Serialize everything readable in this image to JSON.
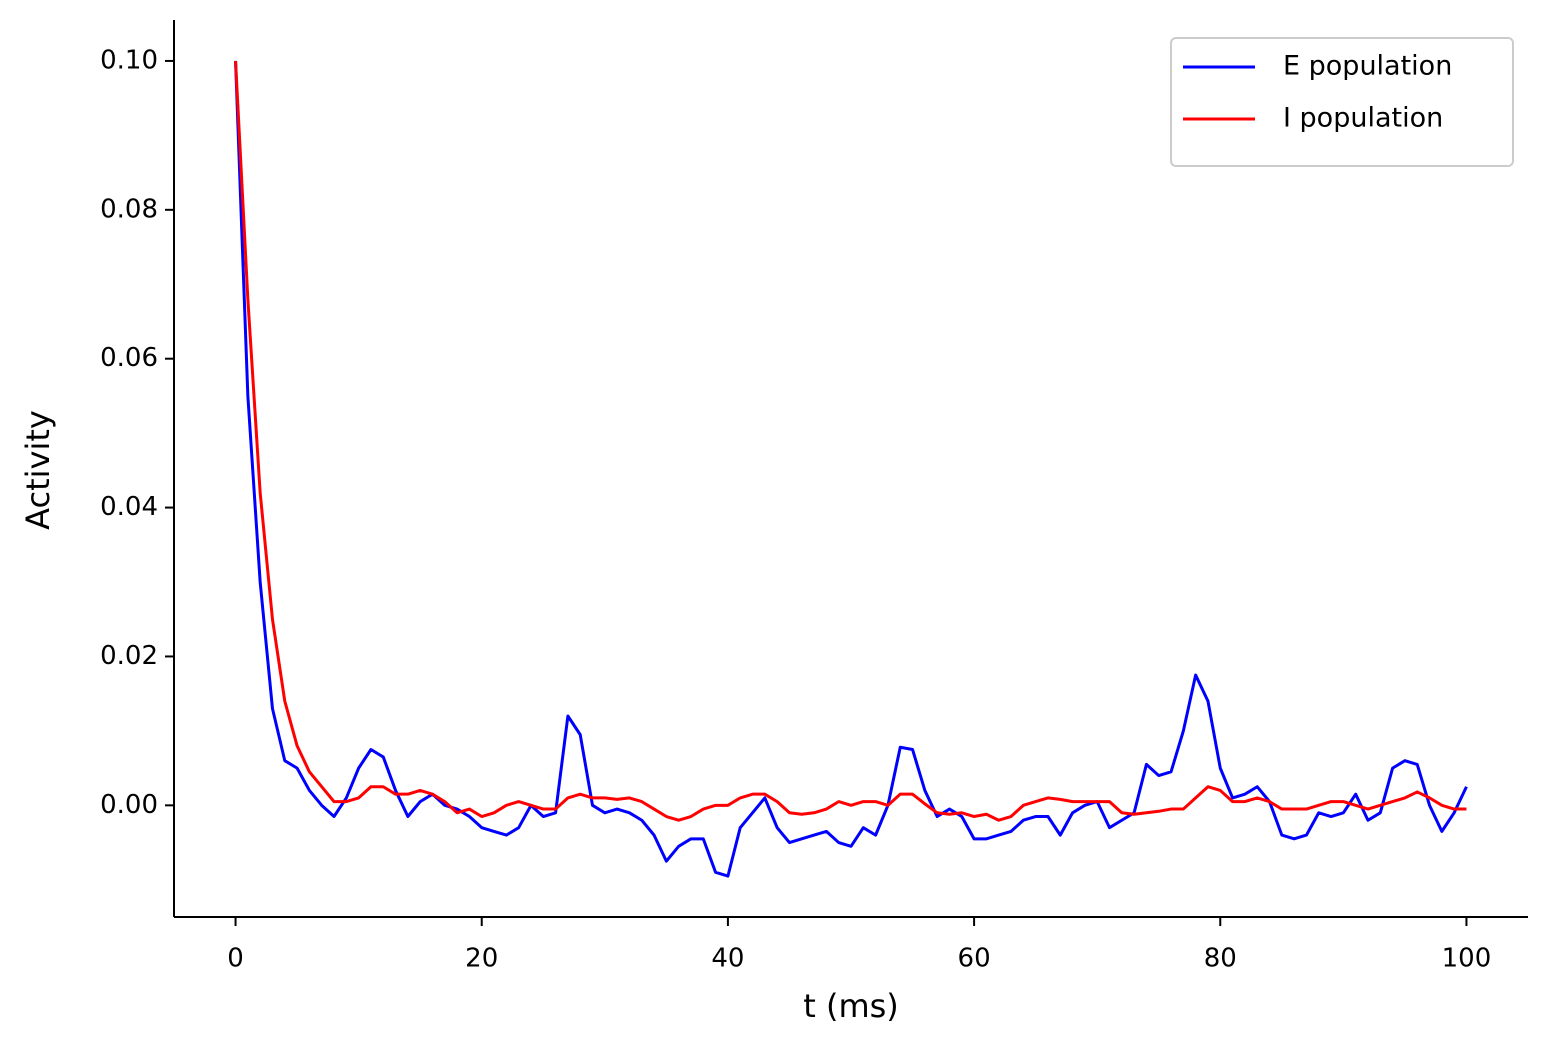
{
  "chart_data": {
    "type": "line",
    "xlabel": "t (ms)",
    "ylabel": "Activity",
    "xlim": [
      -5,
      105
    ],
    "ylim": [
      -0.015,
      0.1055
    ],
    "xticks": [
      0,
      20,
      40,
      60,
      80,
      100
    ],
    "yticks": [
      {
        "value": 0,
        "label": "0.00"
      },
      {
        "value": 0.02,
        "label": "0.02"
      },
      {
        "value": 0.04,
        "label": "0.04"
      },
      {
        "value": 0.06,
        "label": "0.06"
      },
      {
        "value": 0.08,
        "label": "0.08"
      },
      {
        "value": 0.1,
        "label": "0.10"
      }
    ],
    "legend": "upper right",
    "x": [
      0,
      1,
      2,
      3,
      4,
      5,
      6,
      7,
      8,
      9,
      10,
      11,
      12,
      13,
      14,
      15,
      16,
      17,
      18,
      19,
      20,
      21,
      22,
      23,
      24,
      25,
      26,
      27,
      28,
      29,
      30,
      31,
      32,
      33,
      34,
      35,
      36,
      37,
      38,
      39,
      40,
      41,
      42,
      43,
      44,
      45,
      46,
      47,
      48,
      49,
      50,
      51,
      52,
      53,
      54,
      55,
      56,
      57,
      58,
      59,
      60,
      61,
      62,
      63,
      64,
      65,
      66,
      67,
      68,
      69,
      70,
      71,
      72,
      73,
      74,
      75,
      76,
      77,
      78,
      79,
      80,
      81,
      82,
      83,
      84,
      85,
      86,
      87,
      88,
      89,
      90,
      91,
      92,
      93,
      94,
      95,
      96,
      97,
      98,
      99,
      100
    ],
    "series": [
      {
        "name": "E population",
        "color": "#0000ff",
        "values": [
          0.1,
          0.055,
          0.03,
          0.013,
          0.006,
          0.005,
          0.002,
          0.0,
          -0.0015,
          0.001,
          0.005,
          0.0075,
          0.0065,
          0.002,
          -0.0015,
          0.0005,
          0.0015,
          0.0,
          -0.0005,
          -0.0015,
          -0.003,
          -0.0035,
          -0.004,
          -0.003,
          0.0,
          -0.0015,
          -0.001,
          0.012,
          0.0095,
          0.0,
          -0.001,
          -0.0005,
          -0.001,
          -0.002,
          -0.004,
          -0.0075,
          -0.0055,
          -0.0045,
          -0.0045,
          -0.009,
          -0.0095,
          -0.003,
          -0.001,
          0.001,
          -0.003,
          -0.005,
          -0.0045,
          -0.004,
          -0.0035,
          -0.005,
          -0.0055,
          -0.003,
          -0.004,
          0.0,
          0.0078,
          0.0075,
          0.002,
          -0.0015,
          -0.0005,
          -0.0015,
          -0.0045,
          -0.0045,
          -0.004,
          -0.0035,
          -0.002,
          -0.0015,
          -0.0015,
          -0.004,
          -0.001,
          0.0,
          0.0005,
          -0.003,
          -0.002,
          -0.001,
          0.0055,
          0.004,
          0.0045,
          0.01,
          0.0175,
          0.014,
          0.005,
          0.001,
          0.0015,
          0.0025,
          0.0005,
          -0.004,
          -0.0045,
          -0.004,
          -0.001,
          -0.0015,
          -0.001,
          0.0015,
          -0.002,
          -0.001,
          0.005,
          0.006,
          0.0055,
          0.0,
          -0.0035,
          -0.001,
          0.0025
        ]
      },
      {
        "name": "I population",
        "color": "#ff0000",
        "values": [
          0.1,
          0.068,
          0.042,
          0.025,
          0.014,
          0.008,
          0.0045,
          0.0025,
          0.0005,
          0.0005,
          0.001,
          0.0025,
          0.0025,
          0.0015,
          0.0015,
          0.002,
          0.0015,
          0.0005,
          -0.001,
          -0.0005,
          -0.0015,
          -0.001,
          0.0,
          0.0005,
          0.0,
          -0.0005,
          -0.0005,
          0.001,
          0.0015,
          0.001,
          0.001,
          0.0008,
          0.001,
          0.0005,
          -0.0005,
          -0.0015,
          -0.002,
          -0.0015,
          -0.0005,
          0.0,
          0.0,
          0.001,
          0.0015,
          0.0015,
          0.0005,
          -0.001,
          -0.0012,
          -0.001,
          -0.0005,
          0.0005,
          0.0,
          0.0005,
          0.0005,
          0.0,
          0.0015,
          0.0015,
          0.0002,
          -0.001,
          -0.0012,
          -0.001,
          -0.0015,
          -0.0012,
          -0.002,
          -0.0015,
          0.0,
          0.0005,
          0.001,
          0.0008,
          0.0005,
          0.0005,
          0.0005,
          0.0005,
          -0.001,
          -0.0012,
          -0.001,
          -0.0008,
          -0.0005,
          -0.0005,
          0.001,
          0.0025,
          0.002,
          0.0005,
          0.0005,
          0.001,
          0.0005,
          -0.0005,
          -0.0005,
          -0.0005,
          0.0,
          0.0005,
          0.0005,
          0.0,
          -0.0005,
          0.0,
          0.0005,
          0.001,
          0.0018,
          0.001,
          0.0,
          -0.0005,
          -0.0005
        ]
      }
    ]
  }
}
